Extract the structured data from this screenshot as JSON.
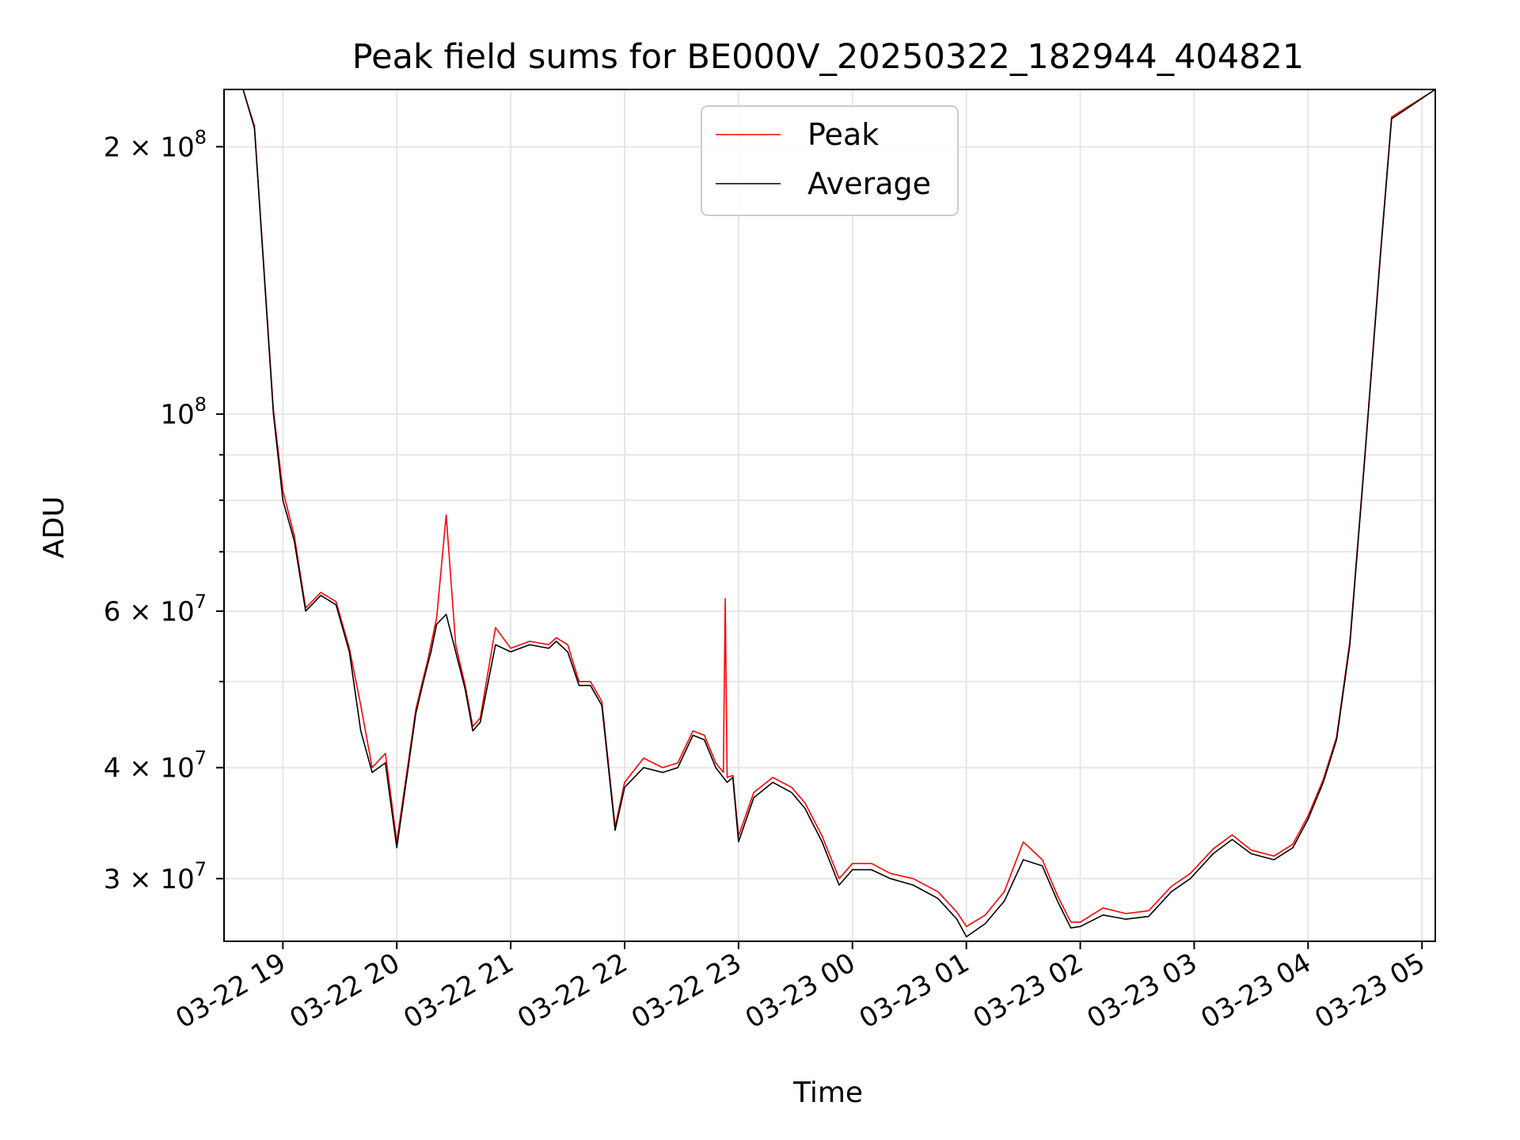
{
  "chart_data": {
    "type": "line",
    "title": "Peak field sums for BE000V_20250322_182944_404821",
    "xlabel": "Time",
    "ylabel": "ADU",
    "yscale": "log",
    "xlim": [
      "2025-03-22 18:29",
      "2025-03-23 05:07"
    ],
    "ylim": [
      25500000,
      232000000
    ],
    "grid": true,
    "legend": {
      "position": "top-center",
      "entries": [
        "Peak",
        "Average"
      ]
    },
    "x_tick_labels": [
      "03-22 19",
      "03-22 20",
      "03-22 21",
      "03-22 22",
      "03-22 23",
      "03-23 00",
      "03-23 01",
      "03-23 02",
      "03-23 03",
      "03-23 04",
      "03-23 05"
    ],
    "y_tick_labels": [
      {
        "value": 200000000,
        "mantissa": "2 × 10",
        "exponent": "8"
      },
      {
        "value": 100000000,
        "mantissa": "10",
        "exponent": "8"
      },
      {
        "value": 60000000,
        "mantissa": "6 × 10",
        "exponent": "7"
      },
      {
        "value": 40000000,
        "mantissa": "4 × 10",
        "exponent": "7"
      },
      {
        "value": 30000000,
        "mantissa": "3 × 10",
        "exponent": "7"
      }
    ],
    "series": [
      {
        "name": "Average",
        "color": "#000000",
        "x": [
          "2025-03-22 18:29",
          "2025-03-22 18:39",
          "2025-03-22 18:45",
          "2025-03-22 18:50",
          "2025-03-22 18:55",
          "2025-03-22 19:00",
          "2025-03-22 19:06",
          "2025-03-22 19:12",
          "2025-03-22 19:20",
          "2025-03-22 19:28",
          "2025-03-22 19:35",
          "2025-03-22 19:41",
          "2025-03-22 19:47",
          "2025-03-22 19:54",
          "2025-03-22 20:00",
          "2025-03-22 20:06",
          "2025-03-22 20:10",
          "2025-03-22 20:14",
          "2025-03-22 20:16",
          "2025-03-22 20:18",
          "2025-03-22 20:21",
          "2025-03-22 20:26",
          "2025-03-22 20:31",
          "2025-03-22 20:36",
          "2025-03-22 20:40",
          "2025-03-22 20:44",
          "2025-03-22 20:52",
          "2025-03-22 21:00",
          "2025-03-22 21:10",
          "2025-03-22 21:20",
          "2025-03-22 21:24",
          "2025-03-22 21:30",
          "2025-03-22 21:36",
          "2025-03-22 21:42",
          "2025-03-22 21:48",
          "2025-03-22 21:55",
          "2025-03-22 22:00",
          "2025-03-22 22:10",
          "2025-03-22 22:20",
          "2025-03-22 22:28",
          "2025-03-22 22:36",
          "2025-03-22 22:42",
          "2025-03-22 22:48",
          "2025-03-22 22:54",
          "2025-03-22 22:57",
          "2025-03-22 23:00",
          "2025-03-22 23:08",
          "2025-03-22 23:18",
          "2025-03-22 23:28",
          "2025-03-22 23:35",
          "2025-03-22 23:44",
          "2025-03-22 23:53",
          "2025-03-23 00:00",
          "2025-03-23 00:10",
          "2025-03-23 00:20",
          "2025-03-23 00:32",
          "2025-03-23 00:45",
          "2025-03-23 00:55",
          "2025-03-23 01:00",
          "2025-03-23 01:10",
          "2025-03-23 01:20",
          "2025-03-23 01:30",
          "2025-03-23 01:40",
          "2025-03-23 01:48",
          "2025-03-23 01:55",
          "2025-03-23 02:00",
          "2025-03-23 02:12",
          "2025-03-23 02:24",
          "2025-03-23 02:36",
          "2025-03-23 02:48",
          "2025-03-23 02:58",
          "2025-03-23 03:10",
          "2025-03-23 03:20",
          "2025-03-23 03:30",
          "2025-03-23 03:42",
          "2025-03-23 03:52",
          "2025-03-23 04:00",
          "2025-03-23 04:08",
          "2025-03-23 04:15",
          "2025-03-23 04:22",
          "2025-03-23 04:30",
          "2025-03-23 04:38",
          "2025-03-23 04:44",
          "2025-03-23 05:07"
        ],
        "y": [
          232000000,
          232000000,
          210000000,
          145000000,
          100000000,
          80000000,
          72000000,
          60000000,
          62500000,
          61000000,
          54000000,
          44000000,
          39500000,
          40500000,
          32500000,
          40000000,
          46000000,
          50000000,
          52000000,
          54000000,
          58000000,
          59500000,
          54000000,
          49000000,
          44000000,
          45000000,
          55000000,
          54000000,
          55000000,
          54500000,
          55500000,
          54000000,
          49500000,
          49500000,
          47000000,
          34000000,
          38000000,
          40000000,
          39500000,
          40000000,
          43500000,
          43000000,
          40000000,
          38500000,
          39000000,
          33000000,
          37000000,
          38500000,
          37500000,
          36000000,
          33000000,
          29500000,
          30700000,
          30700000,
          30000000,
          29500000,
          28500000,
          27000000,
          25800000,
          26700000,
          28300000,
          31500000,
          31000000,
          28300000,
          26400000,
          26500000,
          27300000,
          27000000,
          27200000,
          29000000,
          30000000,
          32000000,
          33200000,
          32000000,
          31500000,
          32500000,
          35000000,
          38500000,
          43000000,
          55000000,
          90000000,
          150000000,
          215000000,
          232000000
        ]
      },
      {
        "name": "Peak",
        "color": "#ff0000",
        "x": [
          "2025-03-22 18:29",
          "2025-03-22 18:39",
          "2025-03-22 18:45",
          "2025-03-22 18:50",
          "2025-03-22 18:55",
          "2025-03-22 19:00",
          "2025-03-22 19:06",
          "2025-03-22 19:12",
          "2025-03-22 19:20",
          "2025-03-22 19:28",
          "2025-03-22 19:35",
          "2025-03-22 19:41",
          "2025-03-22 19:47",
          "2025-03-22 19:54",
          "2025-03-22 20:00",
          "2025-03-22 20:06",
          "2025-03-22 20:10",
          "2025-03-22 20:14",
          "2025-03-22 20:16",
          "2025-03-22 20:18",
          "2025-03-22 20:21",
          "2025-03-22 20:26",
          "2025-03-22 20:31",
          "2025-03-22 20:36",
          "2025-03-22 20:40",
          "2025-03-22 20:44",
          "2025-03-22 20:52",
          "2025-03-22 21:00",
          "2025-03-22 21:10",
          "2025-03-22 21:20",
          "2025-03-22 21:24",
          "2025-03-22 21:30",
          "2025-03-22 21:36",
          "2025-03-22 21:42",
          "2025-03-22 21:48",
          "2025-03-22 21:55",
          "2025-03-22 22:00",
          "2025-03-22 22:10",
          "2025-03-22 22:20",
          "2025-03-22 22:28",
          "2025-03-22 22:36",
          "2025-03-22 22:42",
          "2025-03-22 22:48",
          "2025-03-22 22:52",
          "2025-03-22 22:53",
          "2025-03-22 22:54",
          "2025-03-22 22:57",
          "2025-03-22 23:00",
          "2025-03-22 23:08",
          "2025-03-22 23:18",
          "2025-03-22 23:28",
          "2025-03-22 23:35",
          "2025-03-22 23:44",
          "2025-03-22 23:53",
          "2025-03-23 00:00",
          "2025-03-23 00:10",
          "2025-03-23 00:20",
          "2025-03-23 00:32",
          "2025-03-23 00:45",
          "2025-03-23 00:55",
          "2025-03-23 01:00",
          "2025-03-23 01:10",
          "2025-03-23 01:20",
          "2025-03-23 01:30",
          "2025-03-23 01:40",
          "2025-03-23 01:48",
          "2025-03-23 01:55",
          "2025-03-23 02:00",
          "2025-03-23 02:12",
          "2025-03-23 02:24",
          "2025-03-23 02:36",
          "2025-03-23 02:48",
          "2025-03-23 02:58",
          "2025-03-23 03:10",
          "2025-03-23 03:20",
          "2025-03-23 03:30",
          "2025-03-23 03:42",
          "2025-03-23 03:52",
          "2025-03-23 04:00",
          "2025-03-23 04:08",
          "2025-03-23 04:15",
          "2025-03-23 04:22",
          "2025-03-23 04:30",
          "2025-03-23 04:38",
          "2025-03-23 04:44",
          "2025-03-23 05:07"
        ],
        "y": [
          232000000,
          232000000,
          211000000,
          146000000,
          101000000,
          82000000,
          73000000,
          60500000,
          63000000,
          61500000,
          54500000,
          47000000,
          40000000,
          41500000,
          33000000,
          40500000,
          46500000,
          50500000,
          52500000,
          55000000,
          59000000,
          77000000,
          55000000,
          49500000,
          44500000,
          45500000,
          57500000,
          54500000,
          55500000,
          55000000,
          56000000,
          55000000,
          50000000,
          50000000,
          47500000,
          34300000,
          38500000,
          41000000,
          40000000,
          40500000,
          44000000,
          43500000,
          40500000,
          39500000,
          62000000,
          39000000,
          39200000,
          33500000,
          37500000,
          39000000,
          38000000,
          36500000,
          33500000,
          30000000,
          31200000,
          31200000,
          30400000,
          30000000,
          29000000,
          27500000,
          26500000,
          27300000,
          29000000,
          33000000,
          31500000,
          28700000,
          26800000,
          26800000,
          27800000,
          27400000,
          27600000,
          29400000,
          30400000,
          32400000,
          33600000,
          32300000,
          31800000,
          32800000,
          35300000,
          38800000,
          43300000,
          55500000,
          90500000,
          151000000,
          216000000,
          232000000
        ]
      }
    ]
  }
}
